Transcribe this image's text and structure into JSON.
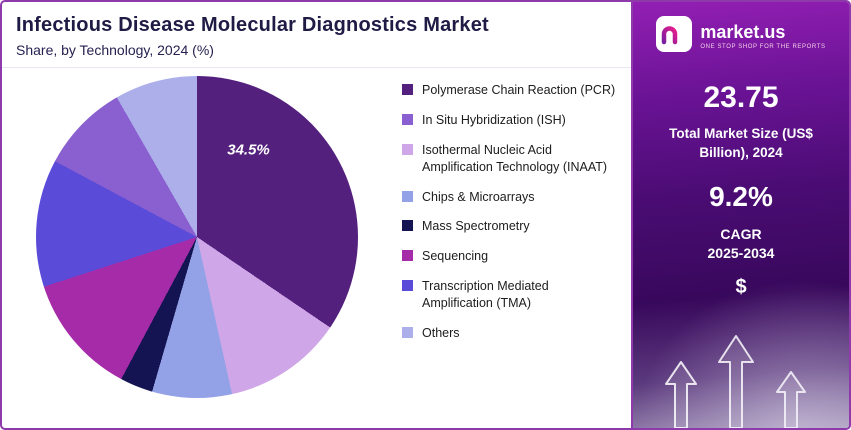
{
  "header": {
    "title": "Infectious Disease Molecular Diagnostics Market",
    "subtitle": "Share, by Technology, 2024 (%)"
  },
  "chart_data": {
    "type": "pie",
    "title": "Infectious Disease Molecular Diagnostics Market",
    "subtitle": "Share, by Technology, 2024 (%)",
    "unit": "%",
    "legend_position": "right",
    "start_angle_deg": 0,
    "direction": "clockwise",
    "segments": [
      {
        "label": "Polymerase Chain Reaction (PCR)",
        "value": 34.5,
        "color": "#54207D"
      },
      {
        "label": "In Situ Hybridization (ISH)",
        "value": 8.9,
        "color": "#8A5FD0"
      },
      {
        "label": "Isothermal Nucleic Acid Amplification Technology (INAAT)",
        "value": 12.0,
        "color": "#CFA6E8"
      },
      {
        "label": "Chips & Microarrays",
        "value": 8.0,
        "color": "#93A1E6"
      },
      {
        "label": "Mass Spectrometry",
        "value": 3.3,
        "color": "#141452"
      },
      {
        "label": "Sequencing",
        "value": 12.2,
        "color": "#A62BA8"
      },
      {
        "label": "Transcription Mediated Amplification (TMA)",
        "value": 12.8,
        "color": "#5B4BD9"
      },
      {
        "label": "Others",
        "value": 8.3,
        "color": "#ACAFEA"
      }
    ],
    "draw_order": [
      0,
      2,
      3,
      4,
      5,
      6,
      1,
      7
    ],
    "labeled_slice": {
      "text": "34.5%",
      "segment_label": "Polymerase Chain Reaction (PCR)"
    }
  },
  "sidebar": {
    "brand": {
      "name": "market.us",
      "tagline": "ONE STOP SHOP FOR THE REPORTS"
    },
    "market_size_value": "23.75",
    "market_size_label": "Total Market Size (US$ Billion), 2024",
    "cagr_value": "9.2%",
    "cagr_line1": "CAGR",
    "cagr_line2": "2025-2034",
    "dollar_symbol": "$"
  },
  "colors": {
    "frame_border": "#8E3AAB",
    "title_text": "#1F1B45",
    "sidebar_top": "#8E24AA",
    "sidebar_bottom": "#38085C"
  }
}
